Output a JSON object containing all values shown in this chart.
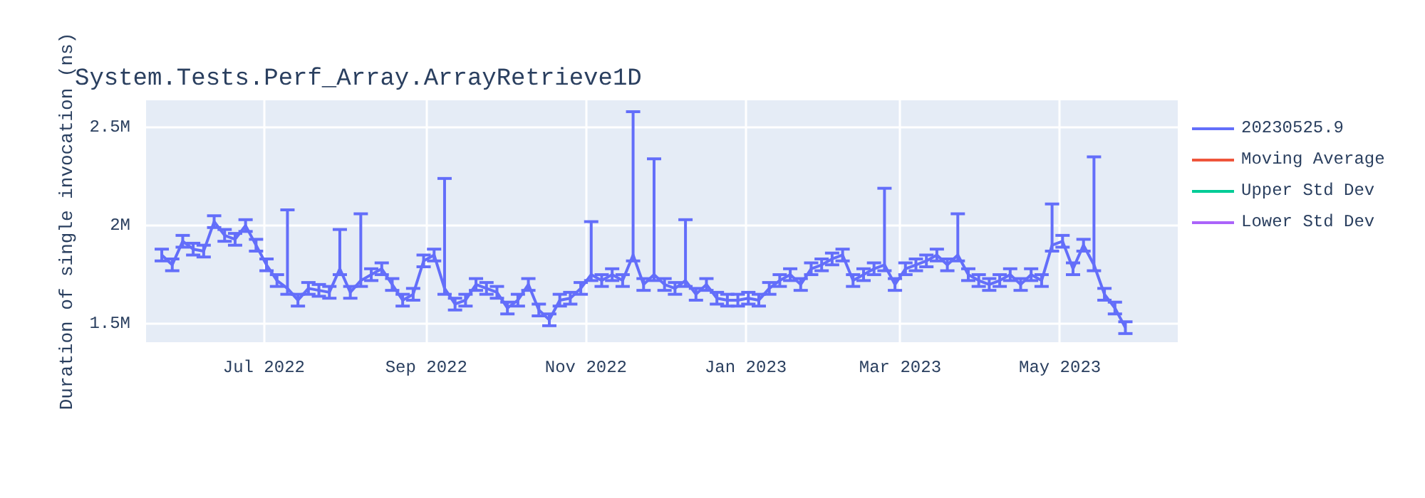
{
  "chart_data": {
    "type": "line",
    "title": "System.Tests.Perf_Array.ArrayRetrieve1D",
    "ylabel": "Duration of single invocation (ns)",
    "x": [
      "2022-05-23",
      "2022-05-27",
      "2022-05-31",
      "2022-06-04",
      "2022-06-08",
      "2022-06-12",
      "2022-06-16",
      "2022-06-20",
      "2022-06-24",
      "2022-06-28",
      "2022-07-02",
      "2022-07-06",
      "2022-07-10",
      "2022-07-14",
      "2022-07-18",
      "2022-07-22",
      "2022-07-26",
      "2022-07-30",
      "2022-08-03",
      "2022-08-07",
      "2022-08-11",
      "2022-08-15",
      "2022-08-19",
      "2022-08-23",
      "2022-08-27",
      "2022-08-31",
      "2022-09-04",
      "2022-09-08",
      "2022-09-12",
      "2022-09-16",
      "2022-09-20",
      "2022-09-24",
      "2022-09-28",
      "2022-10-02",
      "2022-10-06",
      "2022-10-10",
      "2022-10-14",
      "2022-10-18",
      "2022-10-22",
      "2022-10-26",
      "2022-10-30",
      "2022-11-03",
      "2022-11-07",
      "2022-11-11",
      "2022-11-15",
      "2022-11-19",
      "2022-11-23",
      "2022-11-27",
      "2022-12-01",
      "2022-12-05",
      "2022-12-09",
      "2022-12-13",
      "2022-12-17",
      "2022-12-21",
      "2022-12-25",
      "2022-12-29",
      "2023-01-02",
      "2023-01-06",
      "2023-01-10",
      "2023-01-14",
      "2023-01-18",
      "2023-01-22",
      "2023-01-26",
      "2023-01-30",
      "2023-02-03",
      "2023-02-07",
      "2023-02-11",
      "2023-02-15",
      "2023-02-19",
      "2023-02-23",
      "2023-02-27",
      "2023-03-03",
      "2023-03-07",
      "2023-03-11",
      "2023-03-15",
      "2023-03-19",
      "2023-03-23",
      "2023-03-27",
      "2023-03-31",
      "2023-04-04",
      "2023-04-08",
      "2023-04-12",
      "2023-04-16",
      "2023-04-20",
      "2023-04-24",
      "2023-04-28",
      "2023-05-02",
      "2023-05-06",
      "2023-05-10",
      "2023-05-14",
      "2023-05-18",
      "2023-05-22",
      "2023-05-26"
    ],
    "series": [
      {
        "name": "20230525.9",
        "color": "#636efa",
        "values": [
          1850000,
          1800000,
          1920000,
          1880000,
          1870000,
          2020000,
          1950000,
          1930000,
          2000000,
          1900000,
          1800000,
          1720000,
          1680000,
          1620000,
          1680000,
          1670000,
          1660000,
          1780000,
          1660000,
          1720000,
          1750000,
          1780000,
          1700000,
          1620000,
          1650000,
          1820000,
          1850000,
          1680000,
          1600000,
          1620000,
          1700000,
          1680000,
          1660000,
          1580000,
          1620000,
          1700000,
          1570000,
          1520000,
          1620000,
          1630000,
          1680000,
          1750000,
          1720000,
          1750000,
          1720000,
          1850000,
          1700000,
          1750000,
          1700000,
          1680000,
          1720000,
          1650000,
          1700000,
          1630000,
          1620000,
          1620000,
          1630000,
          1620000,
          1680000,
          1720000,
          1750000,
          1700000,
          1780000,
          1800000,
          1830000,
          1850000,
          1720000,
          1750000,
          1780000,
          1800000,
          1700000,
          1780000,
          1800000,
          1820000,
          1850000,
          1800000,
          1850000,
          1750000,
          1720000,
          1700000,
          1720000,
          1750000,
          1700000,
          1750000,
          1720000,
          1900000,
          1920000,
          1780000,
          1900000,
          1800000,
          1650000,
          1580000,
          1480000
        ],
        "errors": [
          30000,
          30000,
          30000,
          30000,
          30000,
          30000,
          30000,
          30000,
          30000,
          30000,
          30000,
          30000,
          [
            1650000,
            2080000
          ],
          30000,
          30000,
          30000,
          30000,
          [
            1750000,
            1980000
          ],
          30000,
          [
            1690000,
            2060000
          ],
          30000,
          30000,
          30000,
          30000,
          30000,
          30000,
          30000,
          [
            1650000,
            2240000
          ],
          30000,
          30000,
          30000,
          30000,
          30000,
          30000,
          30000,
          30000,
          30000,
          30000,
          30000,
          30000,
          30000,
          [
            1720000,
            2020000
          ],
          30000,
          30000,
          30000,
          [
            1820000,
            2580000
          ],
          30000,
          [
            1720000,
            2340000
          ],
          30000,
          30000,
          [
            1690000,
            2030000
          ],
          30000,
          30000,
          30000,
          30000,
          30000,
          30000,
          30000,
          30000,
          30000,
          30000,
          30000,
          30000,
          30000,
          30000,
          30000,
          30000,
          30000,
          30000,
          [
            1770000,
            2190000
          ],
          30000,
          30000,
          30000,
          30000,
          30000,
          30000,
          [
            1820000,
            2060000
          ],
          30000,
          30000,
          30000,
          30000,
          30000,
          30000,
          30000,
          30000,
          [
            1870000,
            2110000
          ],
          30000,
          30000,
          30000,
          [
            1770000,
            2350000
          ],
          30000,
          30000,
          30000
        ]
      },
      {
        "name": "Moving Average",
        "color": "#ef553b",
        "values": [
          null,
          null,
          null,
          null,
          null,
          null,
          null,
          null,
          null,
          null,
          null,
          null,
          null,
          null,
          null,
          null,
          null,
          null,
          null,
          null,
          null,
          null,
          null,
          null,
          null,
          null,
          null,
          null,
          null,
          null,
          null,
          null,
          null,
          null,
          null,
          null,
          null,
          null,
          null,
          null,
          null,
          null,
          null,
          null,
          null,
          null,
          null,
          null,
          null,
          null,
          null,
          null,
          null,
          null,
          null,
          null,
          null,
          null,
          null,
          null,
          null,
          null,
          null,
          null,
          null,
          null,
          null,
          null,
          null,
          null,
          null,
          null,
          null,
          null,
          null,
          null,
          null,
          null,
          null,
          null,
          null,
          null,
          null,
          null,
          null,
          null,
          null,
          null,
          null,
          null,
          null,
          null,
          null
        ]
      },
      {
        "name": "Upper Std Dev",
        "color": "#00cc96",
        "values": [
          null,
          null,
          null,
          null,
          null,
          null,
          null,
          null,
          null,
          null,
          null,
          null,
          null,
          null,
          null,
          null,
          null,
          null,
          null,
          null,
          null,
          null,
          null,
          null,
          null,
          null,
          null,
          null,
          null,
          null,
          null,
          null,
          null,
          null,
          null,
          null,
          null,
          null,
          null,
          null,
          null,
          null,
          null,
          null,
          null,
          null,
          null,
          null,
          null,
          null,
          null,
          null,
          null,
          null,
          null,
          null,
          null,
          null,
          null,
          null,
          null,
          null,
          null,
          null,
          null,
          null,
          null,
          null,
          null,
          null,
          null,
          null,
          null,
          null,
          null,
          null,
          null,
          null,
          null,
          null,
          null,
          null,
          null,
          null,
          null,
          null,
          null,
          null,
          null,
          null,
          null,
          null,
          null
        ]
      },
      {
        "name": "Lower Std Dev",
        "color": "#ab63fa",
        "values": [
          null,
          null,
          null,
          null,
          null,
          null,
          null,
          null,
          null,
          null,
          null,
          null,
          null,
          null,
          null,
          null,
          null,
          null,
          null,
          null,
          null,
          null,
          null,
          null,
          null,
          null,
          null,
          null,
          null,
          null,
          null,
          null,
          null,
          null,
          null,
          null,
          null,
          null,
          null,
          null,
          null,
          null,
          null,
          null,
          null,
          null,
          null,
          null,
          null,
          null,
          null,
          null,
          null,
          null,
          null,
          null,
          null,
          null,
          null,
          null,
          null,
          null,
          null,
          null,
          null,
          null,
          null,
          null,
          null,
          null,
          null,
          null,
          null,
          null,
          null,
          null,
          null,
          null,
          null,
          null,
          null,
          null,
          null,
          null,
          null,
          null,
          null,
          null,
          null,
          null,
          null,
          null,
          null
        ]
      }
    ],
    "xlim": [
      "2022-05-17",
      "2023-06-15"
    ],
    "xticks": [
      {
        "value": "2022-07-01",
        "label": "Jul 2022"
      },
      {
        "value": "2022-09-01",
        "label": "Sep 2022"
      },
      {
        "value": "2022-11-01",
        "label": "Nov 2022"
      },
      {
        "value": "2023-01-01",
        "label": "Jan 2023"
      },
      {
        "value": "2023-03-01",
        "label": "Mar 2023"
      },
      {
        "value": "2023-05-01",
        "label": "May 2023"
      }
    ],
    "ylim": [
      1406000,
      2638000
    ],
    "yticks": [
      {
        "value": 1500000,
        "label": "1.5M"
      },
      {
        "value": 2000000,
        "label": "2M"
      },
      {
        "value": 2500000,
        "label": "2.5M"
      }
    ],
    "grid": true,
    "legend": "top right",
    "marker": "none",
    "line_style": "solid"
  }
}
